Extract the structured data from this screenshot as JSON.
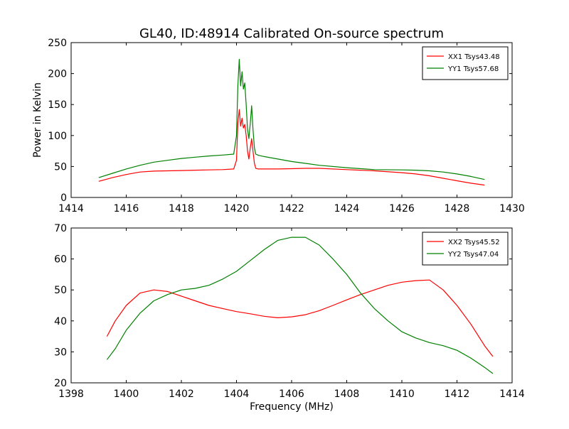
{
  "chart_data": [
    {
      "type": "line",
      "title": "GL40, ID:48914 Calibrated On-source spectrum",
      "xlabel": "",
      "ylabel": "Power in Kelvin",
      "xlim": [
        1414,
        1430
      ],
      "ylim": [
        0,
        250
      ],
      "xticks": [
        1414,
        1416,
        1418,
        1420,
        1422,
        1424,
        1426,
        1428,
        1430
      ],
      "yticks": [
        0,
        50,
        100,
        150,
        200,
        250
      ],
      "grid": false,
      "legend_position": "top-right",
      "series": [
        {
          "name": "XX1 Tsys43.48",
          "color": "#ff0000",
          "x": [
            1415.0,
            1415.5,
            1416.0,
            1416.5,
            1417.0,
            1417.5,
            1418.0,
            1418.5,
            1419.0,
            1419.5,
            1419.9,
            1420.0,
            1420.05,
            1420.1,
            1420.15,
            1420.2,
            1420.25,
            1420.3,
            1420.35,
            1420.4,
            1420.45,
            1420.5,
            1420.55,
            1420.6,
            1420.65,
            1420.7,
            1420.8,
            1421.0,
            1421.5,
            1422.0,
            1422.5,
            1423.0,
            1424.0,
            1425.0,
            1426.0,
            1426.5,
            1427.0,
            1427.5,
            1428.0,
            1428.5,
            1429.0
          ],
          "y": [
            26,
            32,
            37,
            41,
            42.5,
            43,
            43.5,
            44,
            44.5,
            45,
            46,
            60,
            120,
            142,
            115,
            128,
            112,
            118,
            100,
            75,
            62,
            80,
            95,
            75,
            55,
            47,
            46,
            46,
            46,
            46.5,
            47,
            47,
            45,
            43,
            40,
            38,
            35,
            31,
            27,
            23,
            20
          ]
        },
        {
          "name": "YY1 Tsys57.68",
          "color": "#008000",
          "x": [
            1415.0,
            1415.5,
            1416.0,
            1416.5,
            1417.0,
            1417.5,
            1418.0,
            1418.5,
            1419.0,
            1419.5,
            1419.9,
            1420.0,
            1420.05,
            1420.1,
            1420.15,
            1420.2,
            1420.25,
            1420.3,
            1420.35,
            1420.4,
            1420.45,
            1420.5,
            1420.55,
            1420.6,
            1420.65,
            1420.7,
            1420.8,
            1421.0,
            1421.5,
            1422.0,
            1422.5,
            1423.0,
            1424.0,
            1425.0,
            1426.0,
            1426.5,
            1427.0,
            1427.5,
            1428.0,
            1428.5,
            1429.0
          ],
          "y": [
            32,
            39,
            46,
            52,
            57,
            60,
            63,
            65,
            67,
            68.5,
            70,
            100,
            180,
            223,
            180,
            203,
            175,
            185,
            150,
            110,
            95,
            120,
            148,
            110,
            80,
            70,
            68,
            66,
            62,
            58,
            55,
            52,
            48,
            45,
            44.5,
            44,
            43,
            41,
            38,
            34,
            29
          ]
        }
      ]
    },
    {
      "type": "line",
      "title": "",
      "xlabel": "Frequency (MHz)",
      "ylabel": "",
      "xlim": [
        1398,
        1414
      ],
      "ylim": [
        20,
        70
      ],
      "xticks": [
        1398,
        1400,
        1402,
        1404,
        1406,
        1408,
        1410,
        1412,
        1414
      ],
      "yticks": [
        20,
        30,
        40,
        50,
        60,
        70
      ],
      "grid": false,
      "legend_position": "top-right",
      "series": [
        {
          "name": "XX2 Tsys45.52",
          "color": "#ff0000",
          "x": [
            1399.3,
            1399.6,
            1400.0,
            1400.5,
            1401.0,
            1401.5,
            1402.0,
            1402.5,
            1403.0,
            1403.5,
            1404.0,
            1404.5,
            1405.0,
            1405.5,
            1406.0,
            1406.5,
            1407.0,
            1407.5,
            1408.0,
            1408.5,
            1409.0,
            1409.5,
            1410.0,
            1410.5,
            1411.0,
            1411.5,
            1412.0,
            1412.5,
            1413.0,
            1413.3
          ],
          "y": [
            35,
            40,
            45,
            49,
            50,
            49.5,
            48,
            46.5,
            45,
            44,
            43,
            42.3,
            41.5,
            41,
            41.3,
            42,
            43.3,
            45,
            46.8,
            48.5,
            50,
            51.5,
            52.5,
            53,
            53.2,
            50,
            45,
            39,
            32,
            28.5
          ]
        },
        {
          "name": "YY2 Tsys47.04",
          "color": "#008000",
          "x": [
            1399.3,
            1399.6,
            1400.0,
            1400.5,
            1401.0,
            1401.5,
            1402.0,
            1402.5,
            1403.0,
            1403.5,
            1404.0,
            1404.5,
            1405.0,
            1405.5,
            1406.0,
            1406.5,
            1407.0,
            1407.5,
            1408.0,
            1408.5,
            1409.0,
            1409.5,
            1410.0,
            1410.5,
            1411.0,
            1411.5,
            1412.0,
            1412.5,
            1413.0,
            1413.3
          ],
          "y": [
            27.5,
            31,
            37,
            42.5,
            46.5,
            48.5,
            50,
            50.5,
            51.5,
            53.5,
            56,
            59.5,
            63,
            66,
            67,
            67,
            64.5,
            60,
            55,
            49,
            44,
            40,
            36.5,
            34.5,
            33,
            32,
            30.5,
            28,
            25,
            23
          ]
        }
      ]
    }
  ]
}
